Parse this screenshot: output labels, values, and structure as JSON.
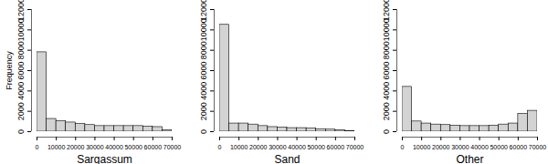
{
  "chart_data": [
    {
      "type": "histogram",
      "x_label": "Sargassum",
      "y_label": "Frequency",
      "bins": [
        0,
        5000,
        10000,
        15000,
        20000,
        25000,
        30000,
        35000,
        40000,
        45000,
        50000,
        55000,
        60000,
        65000,
        70000
      ],
      "values": [
        7800,
        1250,
        1050,
        900,
        750,
        650,
        550,
        550,
        550,
        550,
        550,
        500,
        450,
        150
      ],
      "color": "#d3d3d3",
      "xlim": [
        0,
        70000
      ],
      "xticks": [
        0,
        10000,
        20000,
        30000,
        40000,
        50000,
        60000,
        70000
      ],
      "ylim": [
        0,
        12000
      ],
      "yticks": [
        0,
        2000,
        4000,
        6000,
        8000,
        10000,
        12000
      ],
      "grid": false
    },
    {
      "type": "histogram",
      "x_label": "Sand",
      "bins": [
        0,
        5000,
        10000,
        15000,
        20000,
        25000,
        30000,
        35000,
        40000,
        45000,
        50000,
        55000,
        60000,
        65000,
        70000
      ],
      "values": [
        10500,
        800,
        800,
        700,
        550,
        450,
        400,
        350,
        350,
        300,
        250,
        200,
        150,
        50
      ],
      "color": "#d3d3d3",
      "xlim": [
        0,
        70000
      ],
      "xticks": [
        0,
        10000,
        20000,
        30000,
        40000,
        50000,
        60000,
        70000
      ],
      "ylim": [
        0,
        12000
      ],
      "yticks": [
        0,
        2000,
        4000,
        6000,
        8000,
        10000,
        12000
      ],
      "grid": false
    },
    {
      "type": "histogram",
      "x_label": "Other",
      "bins": [
        0,
        5000,
        10000,
        15000,
        20000,
        25000,
        30000,
        35000,
        40000,
        45000,
        50000,
        55000,
        60000,
        65000,
        70000
      ],
      "values": [
        4400,
        1000,
        800,
        700,
        650,
        600,
        550,
        550,
        550,
        600,
        700,
        800,
        1750,
        2050
      ],
      "color": "#d3d3d3",
      "xlim": [
        0,
        70000
      ],
      "xticks": [
        0,
        10000,
        20000,
        30000,
        40000,
        50000,
        60000,
        70000
      ],
      "ylim": [
        0,
        12000
      ],
      "yticks": [
        0,
        2000,
        4000,
        6000,
        8000,
        10000,
        12000
      ],
      "grid": false
    }
  ]
}
